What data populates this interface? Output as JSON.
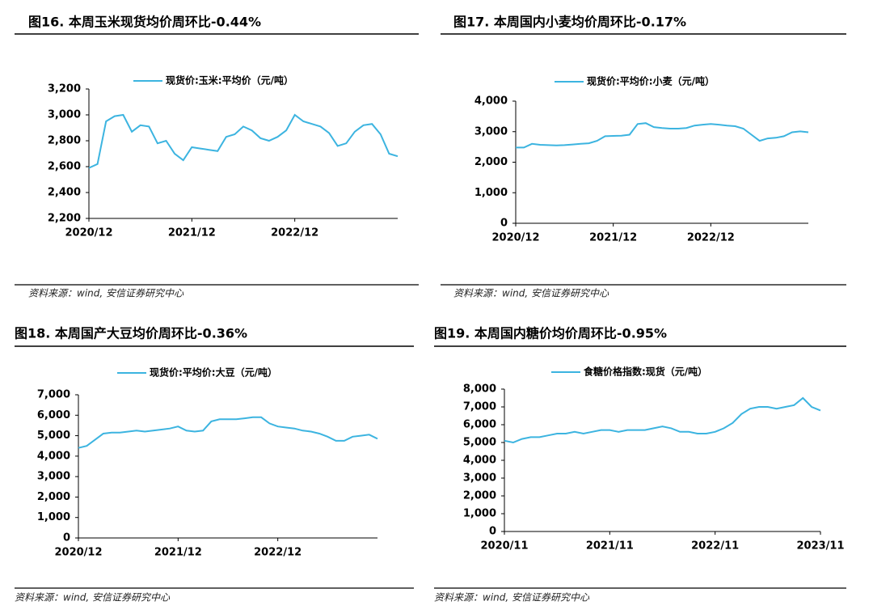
{
  "chart_data": [
    {
      "type": "line",
      "title": "图16. 本周玉米现货均价周环比-0.44%",
      "source": "资料来源：wind, 安信证券研究中心",
      "categories": [
        "2020/12",
        null,
        null,
        null,
        null,
        null,
        null,
        null,
        null,
        null,
        null,
        null,
        "2021/12",
        null,
        null,
        null,
        null,
        null,
        null,
        null,
        null,
        null,
        null,
        null,
        "2022/12",
        null,
        null,
        null,
        null,
        null,
        null,
        null,
        null,
        null,
        null,
        null,
        null
      ],
      "series": [
        {
          "name": "现货价:玉米:平均价（元/吨）",
          "color": "#3cb4e0",
          "values": [
            2590,
            2620,
            2950,
            2990,
            3000,
            2870,
            2920,
            2910,
            2780,
            2800,
            2700,
            2650,
            2750,
            2740,
            2730,
            2720,
            2830,
            2850,
            2910,
            2880,
            2820,
            2800,
            2830,
            2880,
            3000,
            2950,
            2930,
            2910,
            2860,
            2760,
            2780,
            2870,
            2920,
            2930,
            2850,
            2700,
            2680
          ]
        }
      ],
      "ylim": [
        2200,
        3200
      ],
      "yticks": [
        {
          "value": 2200,
          "label": "2,200"
        },
        {
          "value": 2400,
          "label": "2,400"
        },
        {
          "value": 2600,
          "label": "2,600"
        },
        {
          "value": 2800,
          "label": "2,800"
        },
        {
          "value": 3000,
          "label": "3,000"
        },
        {
          "value": 3200,
          "label": "3,200"
        }
      ]
    },
    {
      "type": "line",
      "title": "图17. 本周国内小麦均价周环比-0.17%",
      "source": "资料来源：wind, 安信证券研究中心",
      "categories": [
        "2020/12",
        null,
        null,
        null,
        null,
        null,
        null,
        null,
        null,
        null,
        null,
        null,
        "2021/12",
        null,
        null,
        null,
        null,
        null,
        null,
        null,
        null,
        null,
        null,
        null,
        "2022/12",
        null,
        null,
        null,
        null,
        null,
        null,
        null,
        null,
        null,
        null,
        null,
        null
      ],
      "series": [
        {
          "name": "现货价:平均价:小麦（元/吨）",
          "color": "#3cb4e0",
          "values": [
            2480,
            2480,
            2600,
            2570,
            2560,
            2550,
            2560,
            2580,
            2600,
            2620,
            2700,
            2850,
            2860,
            2870,
            2900,
            3250,
            3280,
            3150,
            3120,
            3100,
            3100,
            3120,
            3200,
            3230,
            3250,
            3230,
            3200,
            3180,
            3100,
            2900,
            2700,
            2780,
            2800,
            2850,
            2980,
            3010,
            2980
          ]
        }
      ],
      "ylim": [
        0,
        4000
      ],
      "yticks": [
        0,
        {
          "value": 1000,
          "label": "1,000"
        },
        {
          "value": 2000,
          "label": "2,000"
        },
        {
          "value": 3000,
          "label": "3,000"
        },
        {
          "value": 4000,
          "label": "4,000"
        }
      ]
    },
    {
      "type": "line",
      "title": "图18. 本周国产大豆均价周环比-0.36%",
      "source": "资料来源：wind, 安信证券研究中心",
      "categories": [
        "2020/12",
        null,
        null,
        null,
        null,
        null,
        null,
        null,
        null,
        null,
        null,
        null,
        "2021/12",
        null,
        null,
        null,
        null,
        null,
        null,
        null,
        null,
        null,
        null,
        null,
        "2022/12",
        null,
        null,
        null,
        null,
        null,
        null,
        null,
        null,
        null,
        null,
        null,
        null
      ],
      "series": [
        {
          "name": "现货价:平均价:大豆（元/吨）",
          "color": "#3cb4e0",
          "values": [
            4400,
            4500,
            4800,
            5100,
            5150,
            5150,
            5200,
            5250,
            5200,
            5250,
            5300,
            5350,
            5450,
            5250,
            5200,
            5250,
            5700,
            5800,
            5800,
            5800,
            5850,
            5900,
            5900,
            5600,
            5450,
            5400,
            5350,
            5250,
            5200,
            5100,
            4950,
            4750,
            4750,
            4950,
            5000,
            5050,
            4850
          ]
        }
      ],
      "ylim": [
        0,
        7000
      ],
      "yticks": [
        0,
        {
          "value": 1000,
          "label": "1,000"
        },
        {
          "value": 2000,
          "label": "2,000"
        },
        {
          "value": 3000,
          "label": "3,000"
        },
        {
          "value": 4000,
          "label": "4,000"
        },
        {
          "value": 5000,
          "label": "5,000"
        },
        {
          "value": 6000,
          "label": "6,000"
        },
        {
          "value": 7000,
          "label": "7,000"
        }
      ]
    },
    {
      "type": "line",
      "title": "图19. 本周国内糖价均价周环比-0.95%",
      "source": "资料来源：wind, 安信证券研究中心",
      "categories": [
        "2020/11",
        null,
        null,
        null,
        null,
        null,
        null,
        null,
        null,
        null,
        null,
        null,
        "2021/11",
        null,
        null,
        null,
        null,
        null,
        null,
        null,
        null,
        null,
        null,
        null,
        "2022/11",
        null,
        null,
        null,
        null,
        null,
        null,
        null,
        null,
        null,
        null,
        null,
        "2023/11"
      ],
      "series": [
        {
          "name": "食糖价格指数:现货（元/吨）",
          "color": "#3cb4e0",
          "values": [
            5100,
            5000,
            5200,
            5300,
            5300,
            5400,
            5500,
            5500,
            5600,
            5500,
            5600,
            5700,
            5700,
            5600,
            5700,
            5700,
            5700,
            5800,
            5900,
            5800,
            5600,
            5600,
            5500,
            5500,
            5600,
            5800,
            6100,
            6600,
            6900,
            7000,
            7000,
            6900,
            7000,
            7100,
            7500,
            7000,
            6800
          ]
        }
      ],
      "ylim": [
        0,
        8000
      ],
      "yticks": [
        0,
        {
          "value": 1000,
          "label": "1,000"
        },
        {
          "value": 2000,
          "label": "2,000"
        },
        {
          "value": 3000,
          "label": "3,000"
        },
        {
          "value": 4000,
          "label": "4,000"
        },
        {
          "value": 5000,
          "label": "5,000"
        },
        {
          "value": 6000,
          "label": "6,000"
        },
        {
          "value": 7000,
          "label": "7,000"
        },
        {
          "value": 8000,
          "label": "8,000"
        }
      ]
    }
  ]
}
